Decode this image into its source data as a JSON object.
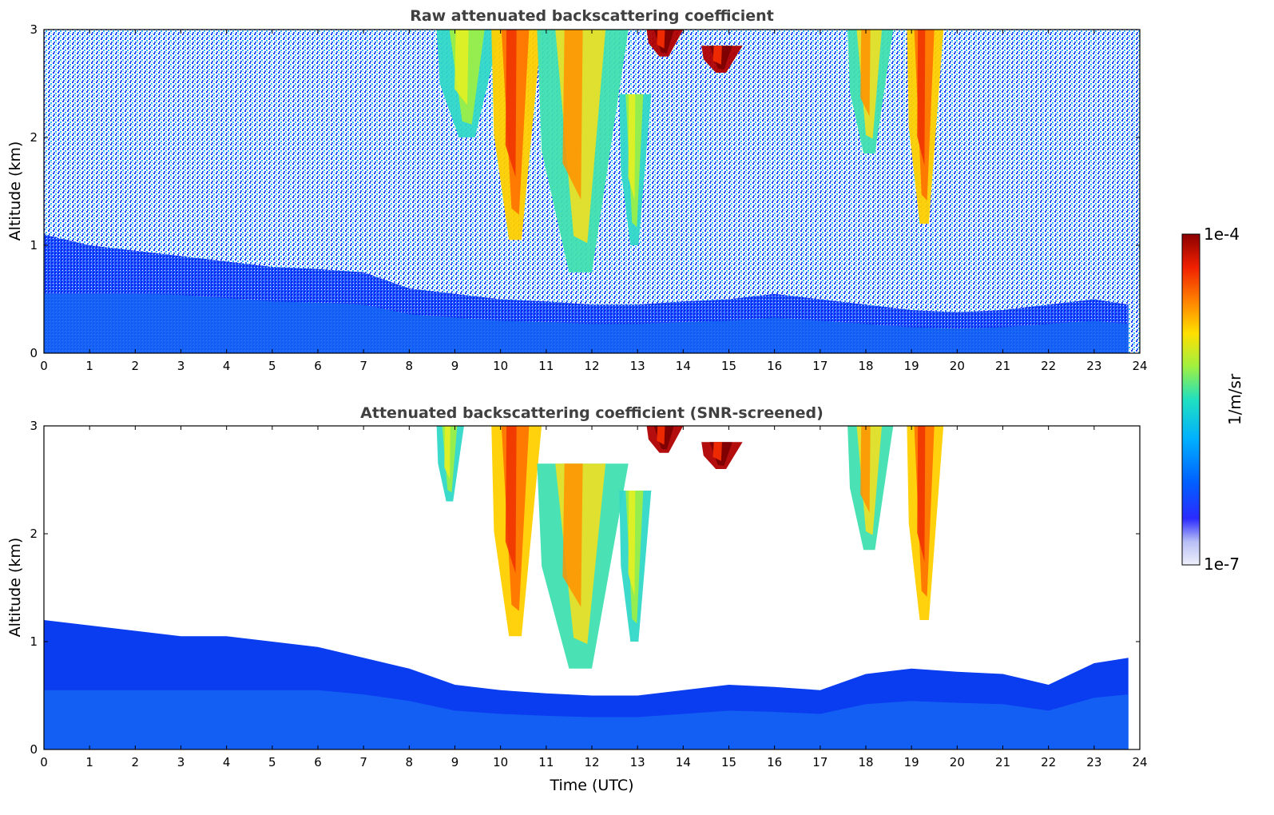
{
  "chart_data": [
    {
      "type": "heatmap",
      "title": "Raw attenuated backscattering coefficient",
      "xlabel": "",
      "ylabel": "Altitude (km)",
      "xlim": [
        0,
        24
      ],
      "ylim": [
        0,
        3
      ],
      "x_ticks": [
        "0",
        "1",
        "2",
        "3",
        "4",
        "5",
        "6",
        "7",
        "8",
        "9",
        "10",
        "11",
        "12",
        "13",
        "14",
        "15",
        "16",
        "17",
        "18",
        "19",
        "20",
        "21",
        "22",
        "23",
        "24"
      ],
      "y_ticks": [
        "0",
        "1",
        "2",
        "3"
      ],
      "boundary_layer_top_km": [
        [
          0,
          1.1
        ],
        [
          1,
          1.0
        ],
        [
          2,
          0.95
        ],
        [
          3,
          0.9
        ],
        [
          4,
          0.85
        ],
        [
          5,
          0.8
        ],
        [
          6,
          0.78
        ],
        [
          7,
          0.75
        ],
        [
          8,
          0.6
        ],
        [
          9,
          0.55
        ],
        [
          10,
          0.5
        ],
        [
          11,
          0.48
        ],
        [
          12,
          0.45
        ],
        [
          13,
          0.45
        ],
        [
          14,
          0.48
        ],
        [
          15,
          0.5
        ],
        [
          16,
          0.55
        ],
        [
          17,
          0.5
        ],
        [
          18,
          0.45
        ],
        [
          19,
          0.4
        ],
        [
          20,
          0.38
        ],
        [
          21,
          0.4
        ],
        [
          22,
          0.45
        ],
        [
          23,
          0.5
        ],
        [
          23.75,
          0.45
        ]
      ],
      "cloud_features": [
        {
          "x_start": 8.6,
          "x_end": 10.0,
          "base_km": 2.0,
          "top_km": 3.0,
          "level": "moderate"
        },
        {
          "x_start": 9.8,
          "x_end": 10.9,
          "base_km": 1.05,
          "top_km": 3.0,
          "level": "high"
        },
        {
          "x_start": 10.8,
          "x_end": 12.8,
          "base_km": 0.75,
          "top_km": 3.0,
          "level": "moderate-high"
        },
        {
          "x_start": 12.6,
          "x_end": 13.3,
          "base_km": 1.0,
          "top_km": 2.4,
          "level": "moderate"
        },
        {
          "x_start": 13.2,
          "x_end": 14.0,
          "base_km": 2.75,
          "top_km": 3.0,
          "level": "very-high"
        },
        {
          "x_start": 14.4,
          "x_end": 15.3,
          "base_km": 2.6,
          "top_km": 2.85,
          "level": "very-high"
        },
        {
          "x_start": 17.6,
          "x_end": 18.6,
          "base_km": 1.85,
          "top_km": 3.0,
          "level": "moderate-high"
        },
        {
          "x_start": 18.9,
          "x_end": 19.7,
          "base_km": 1.2,
          "top_km": 3.0,
          "level": "high"
        }
      ]
    },
    {
      "type": "heatmap",
      "title": "Attenuated backscattering coefficient (SNR-screened)",
      "xlabel": "Time (UTC)",
      "ylabel": "Altitude (km)",
      "xlim": [
        0,
        24
      ],
      "ylim": [
        0,
        3
      ],
      "x_ticks": [
        "0",
        "1",
        "2",
        "3",
        "4",
        "5",
        "6",
        "7",
        "8",
        "9",
        "10",
        "11",
        "12",
        "13",
        "14",
        "15",
        "16",
        "17",
        "18",
        "19",
        "20",
        "21",
        "22",
        "23",
        "24"
      ],
      "y_ticks": [
        "0",
        "1",
        "2",
        "3"
      ],
      "boundary_layer_top_km": [
        [
          0,
          1.2
        ],
        [
          1,
          1.15
        ],
        [
          2,
          1.1
        ],
        [
          3,
          1.05
        ],
        [
          4,
          1.05
        ],
        [
          5,
          1.0
        ],
        [
          6,
          0.95
        ],
        [
          7,
          0.85
        ],
        [
          8,
          0.75
        ],
        [
          9,
          0.6
        ],
        [
          10,
          0.55
        ],
        [
          11,
          0.52
        ],
        [
          12,
          0.5
        ],
        [
          13,
          0.5
        ],
        [
          14,
          0.55
        ],
        [
          15,
          0.6
        ],
        [
          16,
          0.58
        ],
        [
          17,
          0.55
        ],
        [
          18,
          0.7
        ],
        [
          19,
          0.75
        ],
        [
          20,
          0.72
        ],
        [
          21,
          0.7
        ],
        [
          22,
          0.6
        ],
        [
          23,
          0.8
        ],
        [
          23.75,
          0.85
        ]
      ],
      "cloud_features": [
        {
          "x_start": 8.6,
          "x_end": 9.2,
          "base_km": 2.3,
          "top_km": 3.0,
          "level": "moderate"
        },
        {
          "x_start": 9.8,
          "x_end": 10.9,
          "base_km": 1.05,
          "top_km": 3.0,
          "level": "high"
        },
        {
          "x_start": 10.8,
          "x_end": 12.8,
          "base_km": 0.75,
          "top_km": 2.65,
          "level": "moderate-high"
        },
        {
          "x_start": 12.6,
          "x_end": 13.3,
          "base_km": 1.0,
          "top_km": 2.4,
          "level": "moderate"
        },
        {
          "x_start": 13.2,
          "x_end": 14.0,
          "base_km": 2.75,
          "top_km": 3.0,
          "level": "very-high"
        },
        {
          "x_start": 14.4,
          "x_end": 15.3,
          "base_km": 2.6,
          "top_km": 2.85,
          "level": "very-high"
        },
        {
          "x_start": 17.6,
          "x_end": 18.6,
          "base_km": 1.85,
          "top_km": 3.0,
          "level": "moderate-high"
        },
        {
          "x_start": 18.9,
          "x_end": 19.7,
          "base_km": 1.2,
          "top_km": 3.0,
          "level": "high"
        }
      ]
    }
  ],
  "colorbar": {
    "label": "1/m/sr",
    "max_label": "1e-4",
    "min_label": "1e-7",
    "colormap": [
      "#eef0fb",
      "#b8bff5",
      "#2b2bff",
      "#0060ff",
      "#00b0ff",
      "#20e0c0",
      "#a0f040",
      "#ffe000",
      "#ff8000",
      "#f02000",
      "#8b0000"
    ],
    "scale": "log"
  }
}
